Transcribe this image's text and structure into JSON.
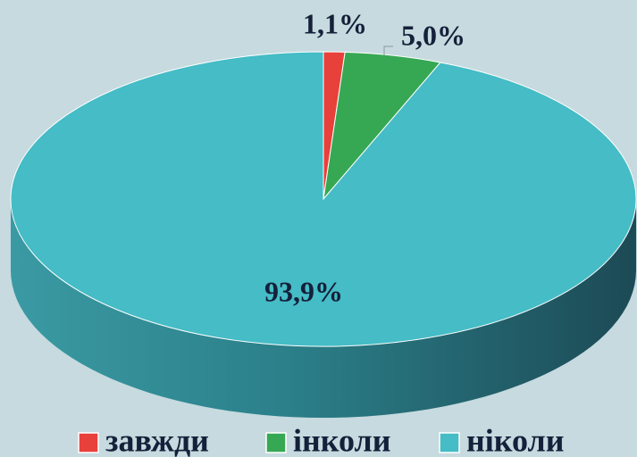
{
  "chart_data": {
    "type": "pie",
    "categories": [
      "завжди",
      "інколи",
      "ніколи"
    ],
    "values": [
      1.1,
      5.0,
      93.9
    ],
    "value_labels": [
      "1,1%",
      "5,0%",
      "93,9%"
    ],
    "colors": [
      "#e8403a",
      "#36a853",
      "#45bcc6"
    ],
    "legend": "bottom"
  }
}
